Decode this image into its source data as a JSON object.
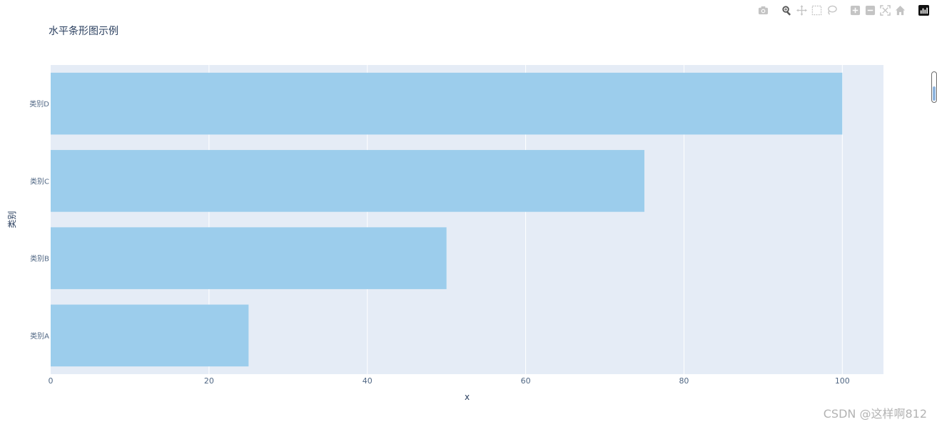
{
  "toolbar": {
    "buttons": [
      {
        "name": "camera-icon",
        "title": "Download plot as a png"
      },
      {
        "name": "zoom-icon",
        "title": "Zoom"
      },
      {
        "name": "pan-icon",
        "title": "Pan"
      },
      {
        "name": "box-select-icon",
        "title": "Box Select"
      },
      {
        "name": "lasso-select-icon",
        "title": "Lasso Select"
      },
      {
        "name": "zoom-in-icon",
        "title": "Zoom in"
      },
      {
        "name": "zoom-out-icon",
        "title": "Zoom out"
      },
      {
        "name": "autoscale-icon",
        "title": "Autoscale"
      },
      {
        "name": "reset-axes-icon",
        "title": "Reset axes"
      },
      {
        "name": "plotly-logo-icon",
        "title": "Produced with Plotly"
      }
    ]
  },
  "watermark": "CSDN @这样啊812",
  "colors": {
    "bar": "#9ccdec",
    "plot_bg": "#e5ecf6",
    "grid": "#ffffff",
    "title": "#2a3f5f",
    "tick": "#506784"
  },
  "chart_data": {
    "type": "bar",
    "orientation": "horizontal",
    "title": "水平条形图示例",
    "xlabel": "x",
    "ylabel": "类别",
    "categories": [
      "类别A",
      "类别B",
      "类别C",
      "类别D"
    ],
    "values": [
      25,
      50,
      75,
      100
    ],
    "xlim": [
      0,
      105.2
    ],
    "xticks": [
      0,
      20,
      40,
      60,
      80,
      100
    ],
    "grid": true
  }
}
